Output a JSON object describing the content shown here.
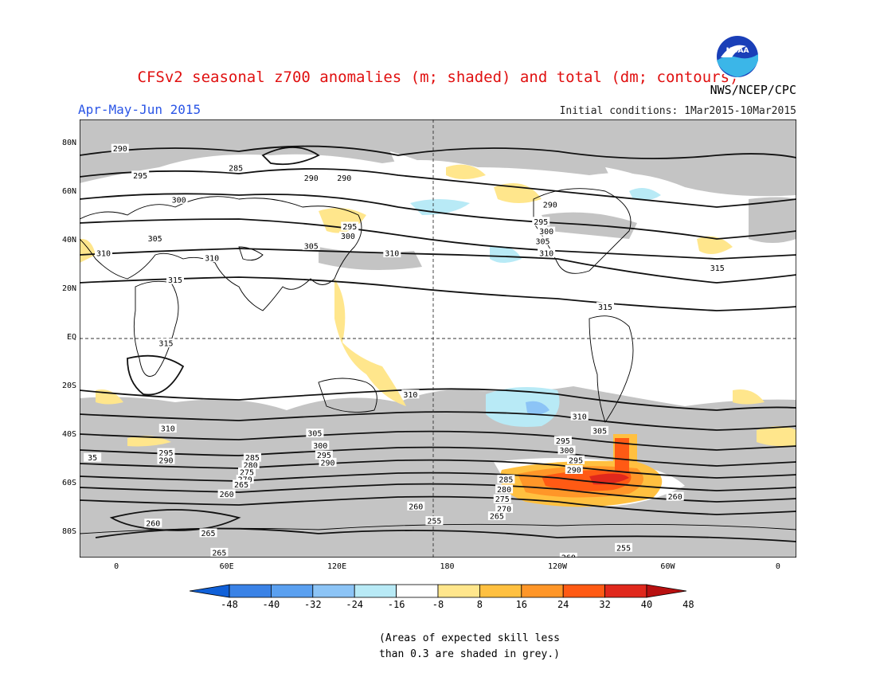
{
  "header": {
    "title": "CFSv2 seasonal z700 anomalies (m; shaded) and total (dm; contours)",
    "season": "Apr-May-Jun 2015",
    "agency": "NWS/NCEP/CPC",
    "initial_conditions": "Initial conditions: 1Mar2015-10Mar2015",
    "logo_text": "NOAA"
  },
  "map": {
    "lat_labels": [
      "80N",
      "60N",
      "40N",
      "20N",
      "EQ",
      "20S",
      "40S",
      "60S",
      "80S"
    ],
    "lon_labels": [
      "0",
      "60E",
      "120E",
      "180",
      "120W",
      "60W",
      "0"
    ],
    "contour_labels": [
      {
        "text": "290",
        "lon": 2,
        "lat": 78
      },
      {
        "text": "285",
        "lon": 65,
        "lat": 70
      },
      {
        "text": "290",
        "lon": 106,
        "lat": 66
      },
      {
        "text": "290",
        "lon": 124,
        "lat": 66
      },
      {
        "text": "295",
        "lon": 13,
        "lat": 67
      },
      {
        "text": "300",
        "lon": 34,
        "lat": 57
      },
      {
        "text": "305",
        "lon": 21,
        "lat": 41
      },
      {
        "text": "310",
        "lon": -7,
        "lat": 35
      },
      {
        "text": "310",
        "lon": 52,
        "lat": 33
      },
      {
        "text": "315",
        "lon": 32,
        "lat": 24
      },
      {
        "text": "295",
        "lon": 127,
        "lat": 46
      },
      {
        "text": "300",
        "lon": 126,
        "lat": 42
      },
      {
        "text": "305",
        "lon": 106,
        "lat": 38
      },
      {
        "text": "310",
        "lon": 150,
        "lat": 35
      },
      {
        "text": "290",
        "lon": 236,
        "lat": 55
      },
      {
        "text": "295",
        "lon": 231,
        "lat": 48
      },
      {
        "text": "300",
        "lon": 234,
        "lat": 44
      },
      {
        "text": "305",
        "lon": 232,
        "lat": 40
      },
      {
        "text": "310",
        "lon": 234,
        "lat": 35
      },
      {
        "text": "315",
        "lon": 327,
        "lat": 29
      },
      {
        "text": "315",
        "lon": 266,
        "lat": 13
      },
      {
        "text": "315",
        "lon": 27,
        "lat": -2
      },
      {
        "text": "310",
        "lon": 160,
        "lat": -23
      },
      {
        "text": "310",
        "lon": 252,
        "lat": -32
      },
      {
        "text": "305",
        "lon": 263,
        "lat": -38
      },
      {
        "text": "310",
        "lon": 28,
        "lat": -37
      },
      {
        "text": "305",
        "lon": 108,
        "lat": -39
      },
      {
        "text": "300",
        "lon": 111,
        "lat": -44
      },
      {
        "text": "295",
        "lon": 113,
        "lat": -48
      },
      {
        "text": "290",
        "lon": 115,
        "lat": -51
      },
      {
        "text": "295",
        "lon": 243,
        "lat": -42
      },
      {
        "text": "300",
        "lon": 245,
        "lat": -46
      },
      {
        "text": "295",
        "lon": 250,
        "lat": -50
      },
      {
        "text": "290",
        "lon": 249,
        "lat": -54
      },
      {
        "text": "295",
        "lon": 27,
        "lat": -47
      },
      {
        "text": "290",
        "lon": 27,
        "lat": -50
      },
      {
        "text": "285",
        "lon": 74,
        "lat": -49
      },
      {
        "text": "280",
        "lon": 73,
        "lat": -52
      },
      {
        "text": "275",
        "lon": 71,
        "lat": -55
      },
      {
        "text": "270",
        "lon": 70,
        "lat": -58
      },
      {
        "text": "265",
        "lon": 68,
        "lat": -60
      },
      {
        "text": "260",
        "lon": 60,
        "lat": -64
      },
      {
        "text": "285",
        "lon": 212,
        "lat": -58
      },
      {
        "text": "280",
        "lon": 211,
        "lat": -62
      },
      {
        "text": "275",
        "lon": 210,
        "lat": -66
      },
      {
        "text": "270",
        "lon": 211,
        "lat": -70
      },
      {
        "text": "265",
        "lon": 207,
        "lat": -73
      },
      {
        "text": "260",
        "lon": 163,
        "lat": -69
      },
      {
        "text": "255",
        "lon": 173,
        "lat": -75
      },
      {
        "text": "260",
        "lon": 304,
        "lat": -65
      },
      {
        "text": "260",
        "lon": 20,
        "lat": -76
      },
      {
        "text": "265",
        "lon": 50,
        "lat": -80
      },
      {
        "text": "265",
        "lon": 56,
        "lat": -88
      },
      {
        "text": "255",
        "lon": 276,
        "lat": -86
      },
      {
        "text": "260",
        "lon": 246,
        "lat": -90
      },
      {
        "text": "35",
        "lon": -13,
        "lat": -49
      }
    ]
  },
  "colorbar": {
    "labels": [
      "-48",
      "-40",
      "-32",
      "-24",
      "-16",
      "-8",
      "8",
      "16",
      "24",
      "32",
      "40",
      "48"
    ],
    "colors": [
      "#1060d8",
      "#3a82e6",
      "#5aa0f0",
      "#8cc4f6",
      "#b8eaf6",
      "#ffffff",
      "#ffe68c",
      "#ffc040",
      "#ff9628",
      "#ff5a14",
      "#e0281c",
      "#b81010"
    ]
  },
  "note": {
    "line1": "(Areas of expected skill less",
    "line2": "than 0.3 are shaded in grey.)"
  }
}
